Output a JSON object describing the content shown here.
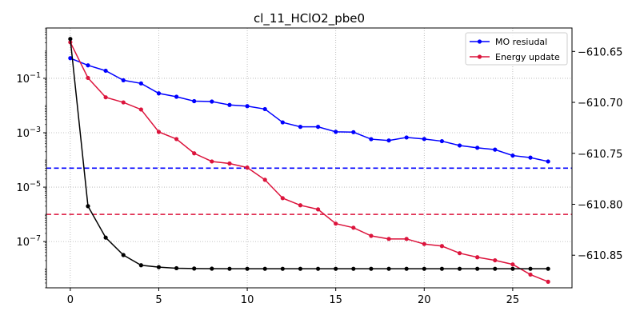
{
  "chart_data": {
    "type": "line",
    "title": "cl_11_HClO2_pbe0",
    "xlabel": "",
    "ylabel_left": "",
    "ylabel_right": "",
    "grid": true,
    "legend_placement": "top-right",
    "x_ticks": [
      0,
      5,
      10,
      15,
      20,
      25
    ],
    "xlim": [
      -1.35,
      28.35
    ],
    "left_axis": {
      "scale": "log",
      "ylim_log10": [
        -8.7,
        0.85
      ],
      "ticks": [
        {
          "value": 0.1,
          "label": "10^-1"
        },
        {
          "value": 0.001,
          "label": "10^-3"
        },
        {
          "value": 1e-05,
          "label": "10^-5"
        },
        {
          "value": 1e-07,
          "label": "10^-7"
        }
      ]
    },
    "right_axis": {
      "scale": "linear",
      "ylim": [
        -610.882,
        -610.627
      ],
      "ticks": [
        -610.65,
        -610.7,
        -610.75,
        -610.8,
        -610.85
      ],
      "tick_labels": [
        "−610.65",
        "−610.70",
        "−610.75",
        "−610.80",
        "−610.85"
      ]
    },
    "x": [
      0,
      1,
      2,
      3,
      4,
      5,
      6,
      7,
      8,
      9,
      10,
      11,
      12,
      13,
      14,
      15,
      16,
      17,
      18,
      19,
      20,
      21,
      22,
      23,
      24,
      25,
      26,
      27
    ],
    "series": [
      {
        "name": "MO resiudal",
        "axis": "left",
        "color": "#0000ff",
        "values": [
          0.55,
          0.3,
          0.19,
          0.085,
          0.065,
          0.028,
          0.021,
          0.0145,
          0.014,
          0.0105,
          0.0095,
          0.0074,
          0.0024,
          0.00165,
          0.00165,
          0.00108,
          0.00105,
          0.00058,
          0.00052,
          0.00067,
          0.00059,
          0.00049,
          0.00034,
          0.00028,
          0.00024,
          0.000145,
          0.000122,
          8.8e-05
        ]
      },
      {
        "name": "Energy update",
        "axis": "right",
        "color": "#dc143c",
        "values": [
          -610.641,
          -610.676,
          -610.695,
          -610.7,
          -610.707,
          -610.729,
          -610.736,
          -610.75,
          -610.758,
          -610.76,
          -610.764,
          -610.776,
          -610.794,
          -610.801,
          -610.805,
          -610.819,
          -610.823,
          -610.831,
          -610.834,
          -610.834,
          -610.839,
          -610.841,
          -610.848,
          -610.852,
          -610.855,
          -610.859,
          -610.869,
          -610.876
        ]
      },
      {
        "axis": "left",
        "color": "#000000",
        "values": [
          2.8,
          2e-06,
          1.4e-07,
          3.2e-08,
          1.35e-08,
          1.15e-08,
          1.05e-08,
          1.02e-08,
          1.01e-08,
          1e-08,
          1e-08,
          1e-08,
          1e-08,
          1e-08,
          1e-08,
          1e-08,
          1e-08,
          1e-08,
          1e-08,
          1e-08,
          1e-08,
          1e-08,
          1e-08,
          1e-08,
          1e-08,
          1e-08,
          1e-08,
          1e-08
        ]
      }
    ],
    "hlines": [
      {
        "axis": "left",
        "value": 5e-05,
        "color": "#0000ff",
        "style": "dashed"
      },
      {
        "axis": "left",
        "value": 1e-06,
        "color": "#dc143c",
        "style": "dashed"
      }
    ]
  }
}
